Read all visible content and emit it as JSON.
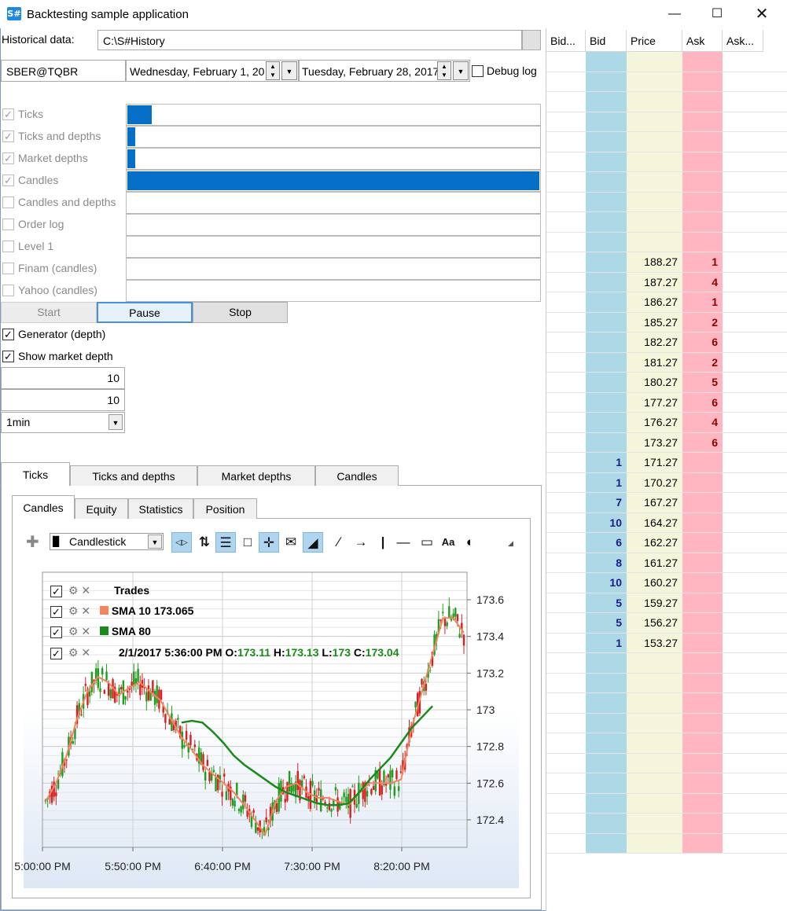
{
  "window": {
    "title": "Backtesting sample application"
  },
  "historical": {
    "label": "Historical data:",
    "path": "C:\\S#History"
  },
  "security": "SBER@TQBR",
  "date_from": "Wednesday, February 1, 20",
  "date_to": "Tuesday, February 28, 2017",
  "debug_log_label": "Debug log",
  "sources": [
    {
      "label": "Ticks",
      "checked": true,
      "progress": 0.06
    },
    {
      "label": "Ticks and depths",
      "checked": true,
      "progress": 0.02
    },
    {
      "label": "Market depths",
      "checked": true,
      "progress": 0.02
    },
    {
      "label": "Candles",
      "checked": true,
      "progress": 1.0
    },
    {
      "label": "Candles and depths",
      "checked": false,
      "progress": 0
    },
    {
      "label": "Order log",
      "checked": false,
      "progress": 0
    },
    {
      "label": "Level 1",
      "checked": false,
      "progress": 0
    },
    {
      "label": "Finam (candles)",
      "checked": false,
      "progress": 0
    },
    {
      "label": "Yahoo (candles)",
      "checked": false,
      "progress": 0
    }
  ],
  "buttons": {
    "start": "Start",
    "pause": "Pause",
    "stop": "Stop"
  },
  "generator_label": "Generator (depth)",
  "show_depth_label": "Show market depth",
  "num1": "10",
  "num2": "10",
  "timeframe": "1min",
  "tabs": [
    "Ticks",
    "Ticks and depths",
    "Market depths",
    "Candles"
  ],
  "subtabs": [
    "Candles",
    "Equity",
    "Statistics",
    "Position"
  ],
  "chart_type": "Candlestick",
  "legend": {
    "trades": "Trades",
    "sma10": "SMA 10",
    "sma10_value": "173.065",
    "sma80": "SMA 80",
    "ohlc_time": "2/1/2017 5:36:00 PM",
    "o_label": "O:",
    "o": "173.11",
    "h_label": "H:",
    "h": "173.13",
    "l_label": "L:",
    "l": "173",
    "c_label": "C:",
    "c": "173.04"
  },
  "colors": {
    "accent": "#0670c9",
    "sma10": "#f4845f",
    "sma80": "#1a8a1a",
    "bid_col": "#add8e6",
    "price_col": "#f5f5dc",
    "ask_col": "#ffb6c1"
  },
  "chart_data": {
    "type": "candlestick",
    "y_ticks": [
      "173.6",
      "173.4",
      "173.2",
      "173",
      "172.8",
      "172.6",
      "172.4"
    ],
    "x_ticks": [
      "5:00:00 PM",
      "5:50:00 PM",
      "6:40:00 PM",
      "7:30:00 PM",
      "8:20:00 PM"
    ],
    "ylim": [
      172.25,
      173.75
    ],
    "sma10": [
      172.5,
      172.6,
      172.75,
      172.95,
      173.1,
      173.18,
      173.15,
      173.08,
      173.12,
      173.15,
      173.1,
      173.05,
      172.95,
      172.85,
      172.78,
      172.7,
      172.65,
      172.6,
      172.55,
      172.48,
      172.4,
      172.32,
      172.5,
      172.58,
      172.6,
      172.55,
      172.52,
      172.52,
      172.5,
      172.48,
      172.55,
      172.6,
      172.6,
      172.6,
      172.62,
      172.9,
      173.1,
      173.3,
      173.5,
      173.5,
      173.42
    ],
    "sma80": [
      null,
      null,
      null,
      null,
      null,
      null,
      null,
      null,
      null,
      null,
      null,
      null,
      null,
      172.93,
      172.94,
      172.93,
      172.88,
      172.82,
      172.75,
      172.7,
      172.66,
      172.62,
      172.58,
      172.55,
      172.53,
      172.51,
      172.49,
      172.48,
      172.48,
      172.49,
      172.55,
      172.62,
      172.68,
      172.74,
      172.82,
      172.9,
      172.96,
      173.02
    ]
  },
  "orderbook": {
    "headers": [
      "Bid...",
      "Bid",
      "Price",
      "Ask",
      "Ask..."
    ],
    "rows": [
      {
        "bid": "",
        "price": "",
        "ask": ""
      },
      {
        "bid": "",
        "price": "",
        "ask": ""
      },
      {
        "bid": "",
        "price": "",
        "ask": ""
      },
      {
        "bid": "",
        "price": "",
        "ask": ""
      },
      {
        "bid": "",
        "price": "",
        "ask": ""
      },
      {
        "bid": "",
        "price": "",
        "ask": ""
      },
      {
        "bid": "",
        "price": "",
        "ask": ""
      },
      {
        "bid": "",
        "price": "",
        "ask": ""
      },
      {
        "bid": "",
        "price": "",
        "ask": ""
      },
      {
        "bid": "",
        "price": "",
        "ask": ""
      },
      {
        "bid": "",
        "price": "188.27",
        "ask": "1"
      },
      {
        "bid": "",
        "price": "187.27",
        "ask": "4"
      },
      {
        "bid": "",
        "price": "186.27",
        "ask": "1"
      },
      {
        "bid": "",
        "price": "185.27",
        "ask": "2"
      },
      {
        "bid": "",
        "price": "182.27",
        "ask": "6"
      },
      {
        "bid": "",
        "price": "181.27",
        "ask": "2"
      },
      {
        "bid": "",
        "price": "180.27",
        "ask": "5"
      },
      {
        "bid": "",
        "price": "177.27",
        "ask": "6"
      },
      {
        "bid": "",
        "price": "176.27",
        "ask": "4"
      },
      {
        "bid": "",
        "price": "173.27",
        "ask": "6"
      },
      {
        "bid": "1",
        "price": "171.27",
        "ask": ""
      },
      {
        "bid": "1",
        "price": "170.27",
        "ask": ""
      },
      {
        "bid": "7",
        "price": "167.27",
        "ask": ""
      },
      {
        "bid": "10",
        "price": "164.27",
        "ask": ""
      },
      {
        "bid": "6",
        "price": "162.27",
        "ask": ""
      },
      {
        "bid": "8",
        "price": "161.27",
        "ask": ""
      },
      {
        "bid": "10",
        "price": "160.27",
        "ask": ""
      },
      {
        "bid": "5",
        "price": "159.27",
        "ask": ""
      },
      {
        "bid": "5",
        "price": "156.27",
        "ask": ""
      },
      {
        "bid": "1",
        "price": "153.27",
        "ask": ""
      },
      {
        "bid": "",
        "price": "",
        "ask": ""
      },
      {
        "bid": "",
        "price": "",
        "ask": ""
      },
      {
        "bid": "",
        "price": "",
        "ask": ""
      },
      {
        "bid": "",
        "price": "",
        "ask": ""
      },
      {
        "bid": "",
        "price": "",
        "ask": ""
      },
      {
        "bid": "",
        "price": "",
        "ask": ""
      },
      {
        "bid": "",
        "price": "",
        "ask": ""
      },
      {
        "bid": "",
        "price": "",
        "ask": ""
      },
      {
        "bid": "",
        "price": "",
        "ask": ""
      },
      {
        "bid": "",
        "price": "",
        "ask": ""
      }
    ]
  }
}
